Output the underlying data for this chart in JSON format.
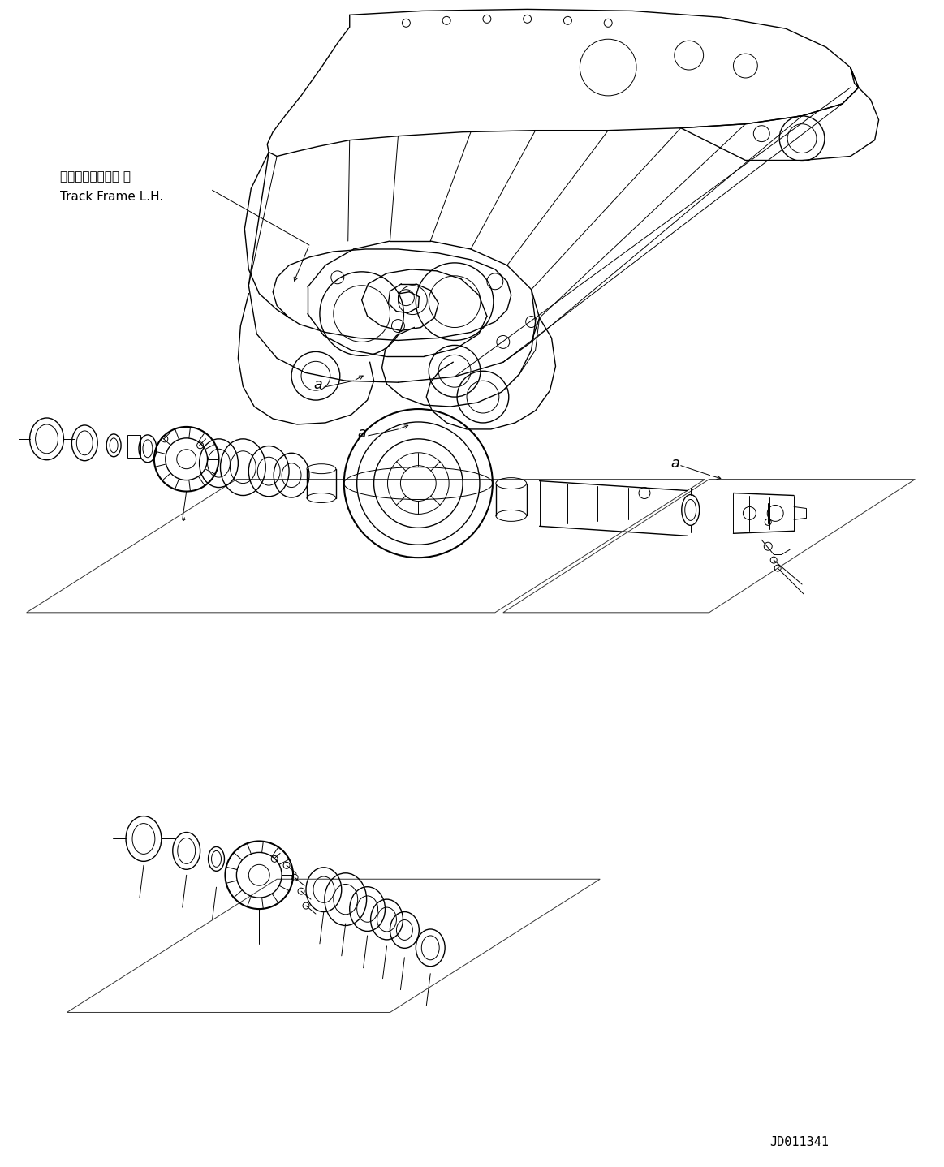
{
  "background_color": "#ffffff",
  "label_japanese": "トラックフレーム 左",
  "label_english": "Track Frame L.H.",
  "part_number": "JD011341",
  "fig_width": 11.63,
  "fig_height": 14.38,
  "dpi": 100,
  "line_color": "#000000",
  "lw_thin": 0.7,
  "lw_med": 1.0,
  "lw_thick": 1.5
}
